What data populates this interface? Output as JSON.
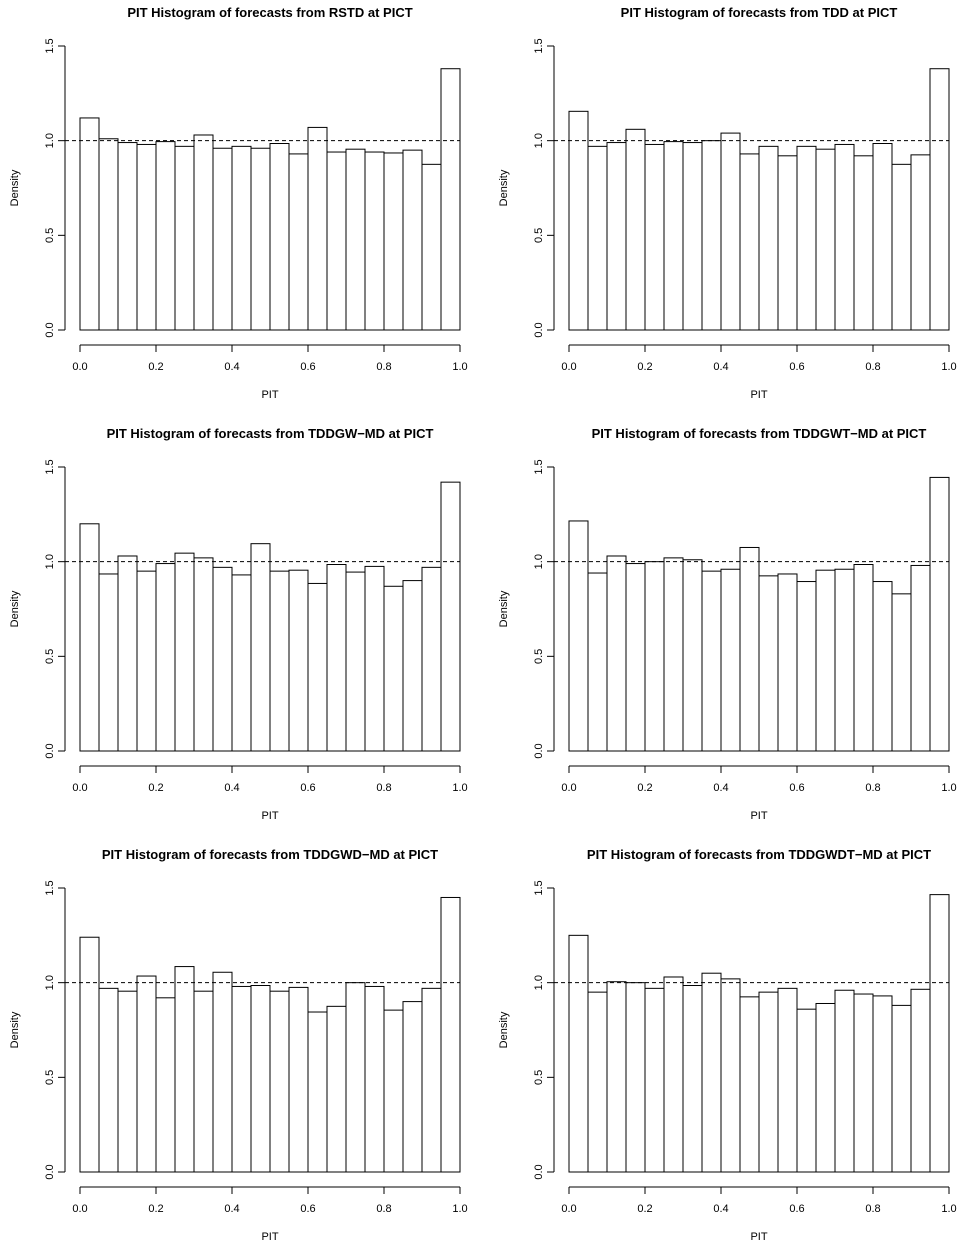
{
  "chart_data": [
    {
      "type": "bar",
      "title": "PIT Histogram of forecasts from RSTD at PICT",
      "xlabel": "PIT",
      "ylabel": "Density",
      "xlim": [
        0,
        1
      ],
      "ylim": [
        0,
        1.5
      ],
      "bin_width": 0.05,
      "x_ticks": [
        "0.0",
        "0.2",
        "0.4",
        "0.6",
        "0.8",
        "1.0"
      ],
      "y_ticks": [
        "0.0",
        "0.5",
        "1.0",
        "1.5"
      ],
      "reference_line": 1.0,
      "values": [
        1.12,
        1.01,
        0.99,
        0.98,
        0.995,
        0.97,
        1.03,
        0.96,
        0.97,
        0.96,
        0.985,
        0.93,
        1.07,
        0.94,
        0.955,
        0.94,
        0.935,
        0.95,
        0.875,
        1.38
      ]
    },
    {
      "type": "bar",
      "title": "PIT Histogram of forecasts from TDD at PICT",
      "xlabel": "PIT",
      "ylabel": "Density",
      "xlim": [
        0,
        1
      ],
      "ylim": [
        0,
        1.5
      ],
      "bin_width": 0.05,
      "x_ticks": [
        "0.0",
        "0.2",
        "0.4",
        "0.6",
        "0.8",
        "1.0"
      ],
      "y_ticks": [
        "0.0",
        "0.5",
        "1.0",
        "1.5"
      ],
      "reference_line": 1.0,
      "values": [
        1.155,
        0.97,
        0.99,
        1.06,
        0.98,
        0.995,
        0.99,
        1.0,
        1.04,
        0.93,
        0.97,
        0.92,
        0.97,
        0.955,
        0.98,
        0.92,
        0.985,
        0.875,
        0.925,
        1.38
      ]
    },
    {
      "type": "bar",
      "title": "PIT Histogram of forecasts from TDDGW−MD at PICT",
      "xlabel": "PIT",
      "ylabel": "Density",
      "xlim": [
        0,
        1
      ],
      "ylim": [
        0,
        1.5
      ],
      "bin_width": 0.05,
      "x_ticks": [
        "0.0",
        "0.2",
        "0.4",
        "0.6",
        "0.8",
        "1.0"
      ],
      "y_ticks": [
        "0.0",
        "0.5",
        "1.0",
        "1.5"
      ],
      "reference_line": 1.0,
      "values": [
        1.2,
        0.935,
        1.03,
        0.95,
        0.99,
        1.045,
        1.02,
        0.97,
        0.93,
        1.095,
        0.95,
        0.955,
        0.885,
        0.985,
        0.945,
        0.975,
        0.87,
        0.9,
        0.97,
        1.42
      ]
    },
    {
      "type": "bar",
      "title": "PIT Histogram of forecasts from TDDGWT−MD at PICT",
      "xlabel": "PIT",
      "ylabel": "Density",
      "xlim": [
        0,
        1
      ],
      "ylim": [
        0,
        1.5
      ],
      "bin_width": 0.05,
      "x_ticks": [
        "0.0",
        "0.2",
        "0.4",
        "0.6",
        "0.8",
        "1.0"
      ],
      "y_ticks": [
        "0.0",
        "0.5",
        "1.0",
        "1.5"
      ],
      "reference_line": 1.0,
      "values": [
        1.215,
        0.94,
        1.03,
        0.99,
        1.0,
        1.02,
        1.01,
        0.95,
        0.96,
        1.075,
        0.925,
        0.935,
        0.895,
        0.955,
        0.96,
        0.985,
        0.895,
        0.83,
        0.98,
        1.445
      ]
    },
    {
      "type": "bar",
      "title": "PIT Histogram of forecasts from TDDGWD−MD at PICT",
      "xlabel": "PIT",
      "ylabel": "Density",
      "xlim": [
        0,
        1
      ],
      "ylim": [
        0,
        1.5
      ],
      "bin_width": 0.05,
      "x_ticks": [
        "0.0",
        "0.2",
        "0.4",
        "0.6",
        "0.8",
        "1.0"
      ],
      "y_ticks": [
        "0.0",
        "0.5",
        "1.0",
        "1.5"
      ],
      "reference_line": 1.0,
      "values": [
        1.24,
        0.97,
        0.955,
        1.035,
        0.92,
        1.085,
        0.955,
        1.055,
        0.98,
        0.985,
        0.955,
        0.975,
        0.845,
        0.875,
        1.0,
        0.98,
        0.855,
        0.9,
        0.97,
        1.45
      ]
    },
    {
      "type": "bar",
      "title": "PIT Histogram of forecasts from TDDGWDT−MD at PICT",
      "xlabel": "PIT",
      "ylabel": "Density",
      "xlim": [
        0,
        1
      ],
      "ylim": [
        0,
        1.5
      ],
      "bin_width": 0.05,
      "x_ticks": [
        "0.0",
        "0.2",
        "0.4",
        "0.6",
        "0.8",
        "1.0"
      ],
      "y_ticks": [
        "0.0",
        "0.5",
        "1.0",
        "1.5"
      ],
      "reference_line": 1.0,
      "values": [
        1.25,
        0.95,
        1.005,
        1.0,
        0.97,
        1.03,
        0.985,
        1.05,
        1.02,
        0.925,
        0.95,
        0.97,
        0.86,
        0.89,
        0.96,
        0.94,
        0.93,
        0.88,
        0.965,
        1.465
      ]
    }
  ]
}
